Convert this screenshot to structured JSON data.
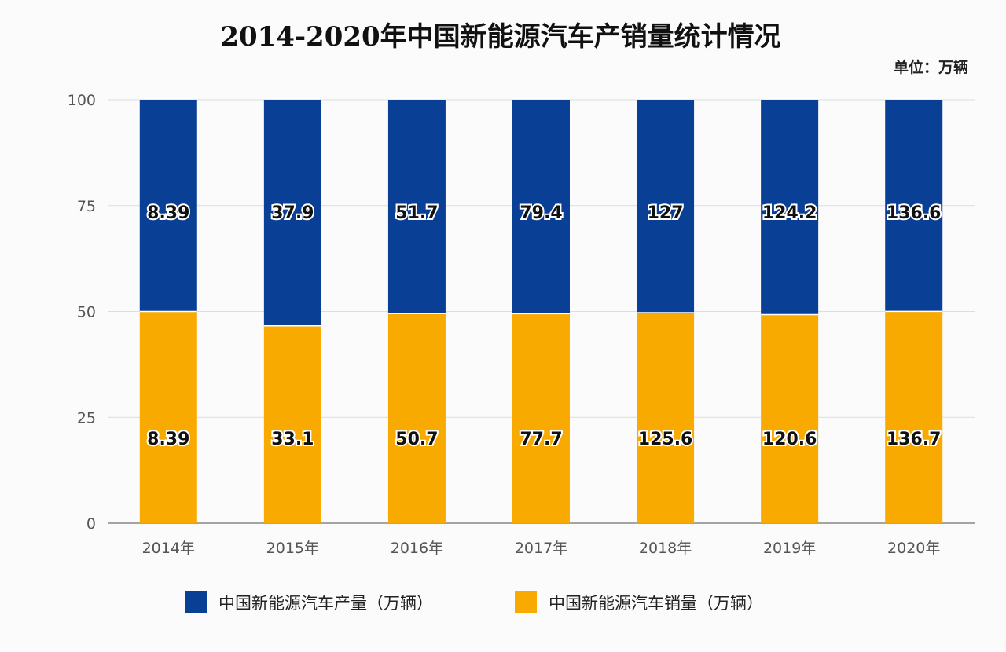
{
  "chart_data": {
    "type": "bar",
    "stacked": "percent",
    "title": "2014-2020年中国新能源汽车产销量统计情况",
    "unit_label": "单位：万辆",
    "categories": [
      "2014年",
      "2015年",
      "2016年",
      "2017年",
      "2018年",
      "2019年",
      "2020年"
    ],
    "series": [
      {
        "name": "中国新能源汽车产量（万辆）",
        "color": "#0a3f96",
        "values": [
          8.39,
          37.9,
          51.7,
          79.4,
          127,
          124.2,
          136.6
        ],
        "labels": [
          "8.39",
          "37.9",
          "51.7",
          "79.4",
          "127",
          "124.2",
          "136.6"
        ]
      },
      {
        "name": "中国新能源汽车销量（万辆）",
        "color": "#f9aa00",
        "values": [
          8.39,
          33.1,
          50.7,
          77.7,
          125.6,
          120.6,
          136.7
        ],
        "labels": [
          "8.39",
          "33.1",
          "50.7",
          "77.7",
          "125.6",
          "120.6",
          "136.7"
        ]
      }
    ],
    "ylim": [
      0,
      100
    ],
    "yticks": [
      "0",
      "25",
      "50",
      "75",
      "100"
    ],
    "grid": true,
    "legend": "bottom"
  }
}
